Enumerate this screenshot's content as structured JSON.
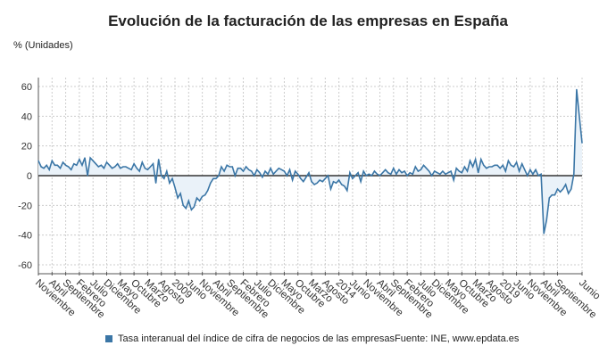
{
  "chart_data": {
    "type": "area",
    "title": "Evolución de la facturación de las empresas en España",
    "ylabel": "% (Unidades)",
    "xlabel": "",
    "ylim": [
      -60,
      60
    ],
    "yticks": [
      60,
      40,
      20,
      0,
      -20,
      -40,
      -60
    ],
    "x_start": "2004-11",
    "x_end": "2021-06",
    "frequency": "monthly",
    "xtick_labels": [
      "Noviembre",
      "Abril",
      "Septiembre",
      "Febrero",
      "Julio",
      "Diciembre",
      "Mayo",
      "Octubre",
      "Marzo",
      "Agosto",
      "2009",
      "Junio",
      "Noviembre",
      "Abril",
      "Septiembre",
      "Febrero",
      "Julio",
      "Diciembre",
      "Mayo",
      "Octubre",
      "Marzo",
      "Agosto",
      "2014",
      "Junio",
      "Noviembre",
      "Abril",
      "Septiembre",
      "Febrero",
      "Julio",
      "Diciembre",
      "Mayo",
      "Octubre",
      "Marzo",
      "Agosto",
      "2019",
      "Junio",
      "Noviembre",
      "Abril",
      "Septiembre",
      "Junio"
    ],
    "grid": true,
    "legend_position": "bottom",
    "series": [
      {
        "name": "Tasa interanual del índice de cifra de negocios de las empresas",
        "color": "#3b76a6",
        "values": [
          10,
          6,
          5,
          7,
          4,
          10,
          7,
          7,
          5,
          9,
          7,
          6,
          4,
          8,
          7,
          11,
          7,
          12,
          0,
          12,
          10,
          8,
          6,
          7,
          5,
          9,
          7,
          5,
          6,
          8,
          5,
          6,
          6,
          5,
          4,
          8,
          5,
          3,
          9,
          5,
          4,
          6,
          8,
          -5,
          11,
          0,
          -2,
          3,
          -5,
          -2,
          -8,
          -15,
          -12,
          -20,
          -22,
          -17,
          -23,
          -21,
          -15,
          -17,
          -14,
          -13,
          -10,
          -5,
          -2,
          -2,
          0,
          6,
          3,
          7,
          6,
          6,
          0,
          5,
          5,
          3,
          6,
          4,
          3,
          0,
          4,
          2,
          -1,
          3,
          1,
          5,
          1,
          3,
          5,
          4,
          3,
          0,
          4,
          -3,
          3,
          1,
          -2,
          -4,
          -1,
          2,
          -4,
          -6,
          -5,
          -3,
          -4,
          -2,
          0,
          -9,
          -4,
          -5,
          -3,
          -6,
          -7,
          -10,
          2,
          -2,
          0,
          2,
          -4,
          3,
          0,
          1,
          0,
          3,
          1,
          0,
          2,
          4,
          2,
          1,
          5,
          1,
          4,
          2,
          3,
          0,
          2,
          1,
          6,
          3,
          4,
          7,
          5,
          3,
          0,
          3,
          2,
          1,
          3,
          1,
          2,
          3,
          -3,
          5,
          3,
          2,
          6,
          3,
          10,
          6,
          11,
          2,
          11,
          7,
          5,
          6,
          6,
          7,
          7,
          5,
          7,
          3,
          10,
          7,
          6,
          9,
          3,
          8,
          4,
          0,
          4,
          1,
          4,
          0,
          1,
          -39,
          -30,
          -15,
          -13,
          -13,
          -9,
          -11,
          -9,
          -6,
          -12,
          -9,
          1,
          58,
          40,
          22
        ]
      }
    ],
    "source": "Fuente: INE, www.epdata.es"
  }
}
